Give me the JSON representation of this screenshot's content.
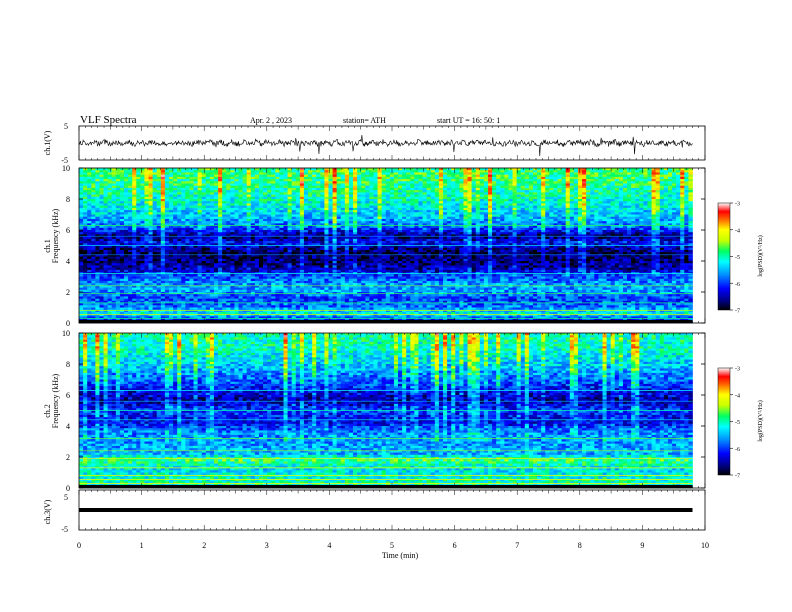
{
  "header": {
    "title": "VLF  Spectra",
    "date": "Apr. 2  , 2023",
    "station": "station= ATH",
    "start": "start  UT  =     16: 50: 1"
  },
  "chart_data": [
    {
      "type": "line",
      "id": "ch1-waveform",
      "ylabel": "ch.1(V)",
      "ylim": [
        -5,
        5
      ],
      "yticks": [
        "5",
        "-5"
      ],
      "xlim": [
        0,
        10
      ],
      "color": "#000000"
    },
    {
      "type": "heatmap",
      "id": "ch1-spectrogram",
      "ylabel": "ch.1\nFrequency  (kHz)",
      "ylim": [
        0,
        10
      ],
      "yticks": [
        "0",
        "2",
        "4",
        "6",
        "8",
        "10"
      ],
      "xlim": [
        0,
        10
      ],
      "xmax_data": 9.8,
      "colorbar": {
        "label": "log(PSD)(V²/Hz)",
        "range": [
          -7,
          -3
        ],
        "ticks": [
          "-3",
          "-4",
          "-5",
          "-6",
          "-7"
        ]
      },
      "band_levels_kHz_to_logPSD": [
        [
          0.0,
          -6.6
        ],
        [
          0.6,
          -5.2
        ],
        [
          1.1,
          -5.8
        ],
        [
          1.6,
          -6.0
        ],
        [
          2.0,
          -5.6
        ],
        [
          2.5,
          -5.6
        ],
        [
          3.0,
          -5.9
        ],
        [
          3.5,
          -6.5
        ],
        [
          4.5,
          -6.8
        ],
        [
          5.2,
          -6.2
        ],
        [
          5.6,
          -6.7
        ],
        [
          6.2,
          -5.8
        ],
        [
          7.0,
          -5.4
        ],
        [
          8.0,
          -5.1
        ],
        [
          9.0,
          -4.9
        ],
        [
          10.0,
          -4.8
        ]
      ]
    },
    {
      "type": "heatmap",
      "id": "ch2-spectrogram",
      "ylabel": "ch.2\nFrequency  (kHz)",
      "ylim": [
        0,
        10
      ],
      "yticks": [
        "0",
        "2",
        "4",
        "6",
        "8",
        "10"
      ],
      "xlim": [
        0,
        10
      ],
      "xmax_data": 9.8,
      "colorbar": {
        "label": "log(PSD)(V²/Hz)",
        "range": [
          -7,
          -3
        ],
        "ticks": [
          "-3",
          "-4",
          "-5",
          "-6",
          "-7"
        ]
      },
      "band_levels_kHz_to_logPSD": [
        [
          0.0,
          -5.0
        ],
        [
          0.6,
          -5.1
        ],
        [
          1.2,
          -5.3
        ],
        [
          1.8,
          -4.8
        ],
        [
          2.2,
          -5.5
        ],
        [
          3.0,
          -5.6
        ],
        [
          3.6,
          -5.7
        ],
        [
          4.3,
          -6.3
        ],
        [
          5.0,
          -6.0
        ],
        [
          5.6,
          -6.5
        ],
        [
          6.2,
          -6.3
        ],
        [
          7.0,
          -5.8
        ],
        [
          8.0,
          -5.4
        ],
        [
          9.0,
          -5.1
        ],
        [
          10.0,
          -5.0
        ]
      ]
    },
    {
      "type": "line",
      "id": "ch3-waveform",
      "ylabel": "ch.3(V)",
      "ylim": [
        -5,
        5
      ],
      "yticks": [
        "5",
        "-5"
      ],
      "xlim": [
        0,
        10
      ],
      "constant_value": 0,
      "color": "#000000"
    }
  ],
  "xaxis": {
    "label": "Time  (min)",
    "ticks": [
      "0",
      "1",
      "2",
      "3",
      "4",
      "5",
      "6",
      "7",
      "8",
      "9",
      "10"
    ],
    "range": [
      0,
      10
    ]
  }
}
